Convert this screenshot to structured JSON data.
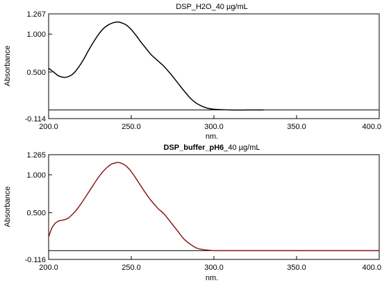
{
  "chart_data": [
    {
      "type": "line",
      "title": "DSP_H2O_40 µg/mL",
      "title_bold": false,
      "xlabel": "nm.",
      "ylabel": "Absorbance",
      "xlim": [
        200.0,
        400.0
      ],
      "ylim": [
        -0.114,
        1.267
      ],
      "x_ticks": [
        "200.0",
        "250.0",
        "300.0",
        "350.0",
        "400.0"
      ],
      "y_ticks": [
        "1.267",
        "1.000",
        "0.500",
        "-0.114"
      ],
      "y_tick_values": [
        1.267,
        1.0,
        0.5,
        -0.114
      ],
      "grid": false,
      "series": [
        {
          "color": "#000000",
          "x": [
            200,
            203,
            206,
            209,
            212,
            215,
            218,
            221,
            224,
            227,
            230,
            233,
            236,
            239,
            242,
            244,
            247,
            250,
            253,
            256,
            259,
            262,
            266,
            270,
            274,
            278,
            282,
            286,
            290,
            295,
            300,
            310,
            320,
            330
          ],
          "values": [
            0.55,
            0.5,
            0.45,
            0.43,
            0.44,
            0.48,
            0.56,
            0.66,
            0.78,
            0.89,
            0.99,
            1.07,
            1.12,
            1.15,
            1.16,
            1.15,
            1.12,
            1.06,
            0.98,
            0.89,
            0.81,
            0.73,
            0.65,
            0.57,
            0.47,
            0.36,
            0.25,
            0.15,
            0.08,
            0.03,
            0.01,
            0.0,
            0.0,
            0.0
          ]
        }
      ],
      "baseline": 0.0
    },
    {
      "type": "line",
      "title": "DSP_buffer_pH6_40 µg/mL",
      "title_bold_part": "DSP_buffer_pH6",
      "title_rest": "_40 µg/mL",
      "xlabel": "nm.",
      "ylabel": "Absorbance",
      "xlim": [
        200.0,
        400.0
      ],
      "ylim": [
        -0.116,
        1.265
      ],
      "x_ticks": [
        "200.0",
        "250.0",
        "300.0",
        "350.0",
        "400.0"
      ],
      "y_ticks": [
        "1.265",
        "1.000",
        "0.500",
        "-0.116"
      ],
      "y_tick_values": [
        1.265,
        1.0,
        0.5,
        -0.116
      ],
      "grid": false,
      "series": [
        {
          "color": "#8b1a1a",
          "x": [
            200,
            202,
            204,
            206,
            208,
            210,
            212,
            214,
            217,
            220,
            223,
            226,
            229,
            232,
            235,
            238,
            241,
            243,
            246,
            249,
            252,
            255,
            258,
            262,
            266,
            270,
            274,
            278,
            282,
            286,
            290,
            295,
            300,
            310,
            330,
            350,
            370,
            400
          ],
          "values": [
            0.18,
            0.3,
            0.36,
            0.39,
            0.4,
            0.41,
            0.43,
            0.47,
            0.54,
            0.63,
            0.73,
            0.83,
            0.93,
            1.02,
            1.09,
            1.14,
            1.16,
            1.16,
            1.13,
            1.07,
            0.98,
            0.88,
            0.78,
            0.66,
            0.56,
            0.48,
            0.37,
            0.26,
            0.15,
            0.08,
            0.03,
            0.01,
            0.0,
            0.0,
            0.0,
            0.0,
            0.0,
            0.0
          ]
        }
      ],
      "baseline": 0.0
    }
  ]
}
